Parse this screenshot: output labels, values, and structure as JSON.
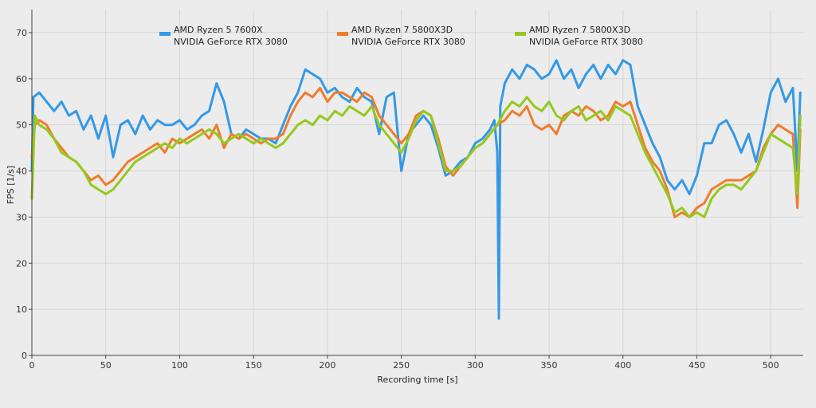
{
  "chart_data": {
    "type": "line",
    "xlabel": "Recording time [s]",
    "ylabel": "FPS [1/s]",
    "xlim": [
      0,
      522
    ],
    "ylim": [
      0,
      75
    ],
    "xticks": [
      0,
      50,
      100,
      150,
      200,
      250,
      300,
      350,
      400,
      450,
      500
    ],
    "yticks": [
      0,
      10,
      20,
      30,
      40,
      50,
      60,
      70
    ],
    "grid": true,
    "legend_position": "top",
    "series": [
      {
        "name_line1": "AMD Ryzen 5 7600X",
        "name_line2": "NVIDIA GeForce RTX 3080",
        "color": "#3399e6",
        "points": [
          [
            0,
            40
          ],
          [
            1,
            56
          ],
          [
            5,
            57
          ],
          [
            10,
            55
          ],
          [
            15,
            53
          ],
          [
            20,
            55
          ],
          [
            25,
            52
          ],
          [
            30,
            53
          ],
          [
            35,
            49
          ],
          [
            40,
            52
          ],
          [
            45,
            47
          ],
          [
            50,
            52
          ],
          [
            55,
            43
          ],
          [
            60,
            50
          ],
          [
            65,
            51
          ],
          [
            70,
            48
          ],
          [
            75,
            52
          ],
          [
            80,
            49
          ],
          [
            85,
            51
          ],
          [
            90,
            50
          ],
          [
            95,
            50
          ],
          [
            100,
            51
          ],
          [
            105,
            49
          ],
          [
            110,
            50
          ],
          [
            115,
            52
          ],
          [
            120,
            53
          ],
          [
            125,
            59
          ],
          [
            130,
            55
          ],
          [
            135,
            48
          ],
          [
            140,
            47
          ],
          [
            145,
            49
          ],
          [
            150,
            48
          ],
          [
            155,
            47
          ],
          [
            160,
            47
          ],
          [
            165,
            46
          ],
          [
            170,
            50
          ],
          [
            175,
            54
          ],
          [
            180,
            57
          ],
          [
            185,
            62
          ],
          [
            190,
            61
          ],
          [
            195,
            60
          ],
          [
            200,
            57
          ],
          [
            205,
            58
          ],
          [
            210,
            56
          ],
          [
            215,
            55
          ],
          [
            220,
            58
          ],
          [
            225,
            56
          ],
          [
            230,
            55
          ],
          [
            235,
            48
          ],
          [
            240,
            56
          ],
          [
            245,
            57
          ],
          [
            250,
            40
          ],
          [
            255,
            48
          ],
          [
            260,
            50
          ],
          [
            265,
            52
          ],
          [
            270,
            50
          ],
          [
            275,
            45
          ],
          [
            280,
            39
          ],
          [
            285,
            40
          ],
          [
            290,
            42
          ],
          [
            295,
            43
          ],
          [
            300,
            46
          ],
          [
            305,
            47
          ],
          [
            310,
            49
          ],
          [
            313,
            51
          ],
          [
            315,
            44
          ],
          [
            316,
            8
          ],
          [
            317,
            54
          ],
          [
            320,
            59
          ],
          [
            325,
            62
          ],
          [
            330,
            60
          ],
          [
            335,
            63
          ],
          [
            340,
            62
          ],
          [
            345,
            60
          ],
          [
            350,
            61
          ],
          [
            355,
            64
          ],
          [
            360,
            60
          ],
          [
            365,
            62
          ],
          [
            370,
            58
          ],
          [
            375,
            61
          ],
          [
            380,
            63
          ],
          [
            385,
            60
          ],
          [
            390,
            63
          ],
          [
            395,
            61
          ],
          [
            400,
            64
          ],
          [
            405,
            63
          ],
          [
            410,
            54
          ],
          [
            415,
            50
          ],
          [
            420,
            46
          ],
          [
            425,
            43
          ],
          [
            430,
            38
          ],
          [
            435,
            36
          ],
          [
            440,
            38
          ],
          [
            445,
            35
          ],
          [
            450,
            39
          ],
          [
            455,
            46
          ],
          [
            460,
            46
          ],
          [
            465,
            50
          ],
          [
            470,
            51
          ],
          [
            475,
            48
          ],
          [
            480,
            44
          ],
          [
            485,
            48
          ],
          [
            490,
            42
          ],
          [
            495,
            49
          ],
          [
            500,
            57
          ],
          [
            505,
            60
          ],
          [
            510,
            55
          ],
          [
            515,
            58
          ],
          [
            518,
            40
          ],
          [
            520,
            57
          ]
        ]
      },
      {
        "name_line1": "AMD Ryzen 7 5800X3D",
        "name_line2": "NVIDIA GeForce RTX 3080",
        "color": "#f07c2b",
        "points": [
          [
            0,
            43
          ],
          [
            2,
            50
          ],
          [
            5,
            51
          ],
          [
            10,
            50
          ],
          [
            15,
            47
          ],
          [
            20,
            45
          ],
          [
            25,
            43
          ],
          [
            30,
            42
          ],
          [
            35,
            40
          ],
          [
            40,
            38
          ],
          [
            45,
            39
          ],
          [
            50,
            37
          ],
          [
            55,
            38
          ],
          [
            60,
            40
          ],
          [
            65,
            42
          ],
          [
            70,
            43
          ],
          [
            75,
            44
          ],
          [
            80,
            45
          ],
          [
            85,
            46
          ],
          [
            90,
            44
          ],
          [
            95,
            47
          ],
          [
            100,
            46
          ],
          [
            105,
            47
          ],
          [
            110,
            48
          ],
          [
            115,
            49
          ],
          [
            120,
            47
          ],
          [
            125,
            50
          ],
          [
            130,
            45
          ],
          [
            135,
            48
          ],
          [
            140,
            47
          ],
          [
            145,
            48
          ],
          [
            150,
            47
          ],
          [
            155,
            46
          ],
          [
            160,
            47
          ],
          [
            165,
            47
          ],
          [
            170,
            48
          ],
          [
            175,
            52
          ],
          [
            180,
            55
          ],
          [
            185,
            57
          ],
          [
            190,
            56
          ],
          [
            195,
            58
          ],
          [
            200,
            55
          ],
          [
            205,
            57
          ],
          [
            210,
            57
          ],
          [
            215,
            56
          ],
          [
            220,
            55
          ],
          [
            225,
            57
          ],
          [
            230,
            56
          ],
          [
            235,
            52
          ],
          [
            240,
            50
          ],
          [
            245,
            48
          ],
          [
            250,
            46
          ],
          [
            255,
            48
          ],
          [
            260,
            52
          ],
          [
            265,
            53
          ],
          [
            270,
            52
          ],
          [
            275,
            47
          ],
          [
            280,
            41
          ],
          [
            285,
            39
          ],
          [
            290,
            41
          ],
          [
            295,
            43
          ],
          [
            300,
            45
          ],
          [
            305,
            46
          ],
          [
            310,
            48
          ],
          [
            315,
            50
          ],
          [
            320,
            51
          ],
          [
            325,
            53
          ],
          [
            330,
            52
          ],
          [
            335,
            54
          ],
          [
            340,
            50
          ],
          [
            345,
            49
          ],
          [
            350,
            50
          ],
          [
            355,
            48
          ],
          [
            360,
            52
          ],
          [
            365,
            53
          ],
          [
            370,
            52
          ],
          [
            375,
            54
          ],
          [
            380,
            53
          ],
          [
            385,
            51
          ],
          [
            390,
            52
          ],
          [
            395,
            55
          ],
          [
            400,
            54
          ],
          [
            405,
            55
          ],
          [
            410,
            50
          ],
          [
            415,
            45
          ],
          [
            420,
            42
          ],
          [
            425,
            40
          ],
          [
            430,
            36
          ],
          [
            435,
            30
          ],
          [
            440,
            31
          ],
          [
            445,
            30
          ],
          [
            450,
            32
          ],
          [
            455,
            33
          ],
          [
            460,
            36
          ],
          [
            465,
            37
          ],
          [
            470,
            38
          ],
          [
            475,
            38
          ],
          [
            480,
            38
          ],
          [
            485,
            39
          ],
          [
            490,
            40
          ],
          [
            495,
            45
          ],
          [
            500,
            48
          ],
          [
            505,
            50
          ],
          [
            510,
            49
          ],
          [
            515,
            48
          ],
          [
            518,
            32
          ],
          [
            520,
            49
          ]
        ]
      },
      {
        "name_line1": "AMD Ryzen 7 5800X3D",
        "name_line2": "NVIDIA GeForce RTX 3080",
        "color": "#96c81e",
        "points": [
          [
            0,
            34
          ],
          [
            2,
            52
          ],
          [
            5,
            50
          ],
          [
            10,
            49
          ],
          [
            15,
            47
          ],
          [
            20,
            44
          ],
          [
            25,
            43
          ],
          [
            30,
            42
          ],
          [
            35,
            40
          ],
          [
            40,
            37
          ],
          [
            45,
            36
          ],
          [
            50,
            35
          ],
          [
            55,
            36
          ],
          [
            60,
            38
          ],
          [
            65,
            40
          ],
          [
            70,
            42
          ],
          [
            75,
            43
          ],
          [
            80,
            44
          ],
          [
            85,
            45
          ],
          [
            90,
            46
          ],
          [
            95,
            45
          ],
          [
            100,
            47
          ],
          [
            105,
            46
          ],
          [
            110,
            47
          ],
          [
            115,
            48
          ],
          [
            120,
            49
          ],
          [
            125,
            48
          ],
          [
            130,
            46
          ],
          [
            135,
            47
          ],
          [
            140,
            48
          ],
          [
            145,
            47
          ],
          [
            150,
            46
          ],
          [
            155,
            47
          ],
          [
            160,
            46
          ],
          [
            165,
            45
          ],
          [
            170,
            46
          ],
          [
            175,
            48
          ],
          [
            180,
            50
          ],
          [
            185,
            51
          ],
          [
            190,
            50
          ],
          [
            195,
            52
          ],
          [
            200,
            51
          ],
          [
            205,
            53
          ],
          [
            210,
            52
          ],
          [
            215,
            54
          ],
          [
            220,
            53
          ],
          [
            225,
            52
          ],
          [
            230,
            54
          ],
          [
            235,
            50
          ],
          [
            240,
            48
          ],
          [
            245,
            46
          ],
          [
            250,
            44
          ],
          [
            255,
            47
          ],
          [
            260,
            51
          ],
          [
            265,
            53
          ],
          [
            270,
            52
          ],
          [
            275,
            46
          ],
          [
            280,
            40
          ],
          [
            285,
            40
          ],
          [
            290,
            41
          ],
          [
            295,
            43
          ],
          [
            300,
            45
          ],
          [
            305,
            46
          ],
          [
            310,
            48
          ],
          [
            315,
            50
          ],
          [
            320,
            53
          ],
          [
            325,
            55
          ],
          [
            330,
            54
          ],
          [
            335,
            56
          ],
          [
            340,
            54
          ],
          [
            345,
            53
          ],
          [
            350,
            55
          ],
          [
            355,
            52
          ],
          [
            360,
            51
          ],
          [
            365,
            53
          ],
          [
            370,
            54
          ],
          [
            375,
            51
          ],
          [
            380,
            52
          ],
          [
            385,
            53
          ],
          [
            390,
            51
          ],
          [
            395,
            54
          ],
          [
            400,
            53
          ],
          [
            405,
            52
          ],
          [
            410,
            48
          ],
          [
            415,
            44
          ],
          [
            420,
            41
          ],
          [
            425,
            38
          ],
          [
            430,
            35
          ],
          [
            435,
            31
          ],
          [
            440,
            32
          ],
          [
            445,
            30
          ],
          [
            450,
            31
          ],
          [
            455,
            30
          ],
          [
            460,
            34
          ],
          [
            465,
            36
          ],
          [
            470,
            37
          ],
          [
            475,
            37
          ],
          [
            480,
            36
          ],
          [
            485,
            38
          ],
          [
            490,
            40
          ],
          [
            495,
            44
          ],
          [
            500,
            48
          ],
          [
            505,
            47
          ],
          [
            510,
            46
          ],
          [
            515,
            45
          ],
          [
            518,
            35
          ],
          [
            520,
            52
          ]
        ]
      }
    ]
  }
}
